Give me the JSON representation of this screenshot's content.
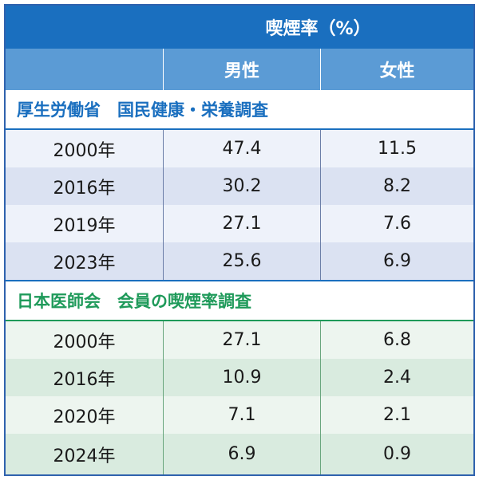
{
  "header": {
    "title": "喫煙率（%）",
    "col_male": "男性",
    "col_female": "女性"
  },
  "sections": [
    {
      "title": "厚生労働省　国民健康・栄養調査",
      "rows": [
        {
          "year": "2000年",
          "male": "47.4",
          "female": "11.5"
        },
        {
          "year": "2016年",
          "male": "30.2",
          "female": "8.2"
        },
        {
          "year": "2019年",
          "male": "27.1",
          "female": "7.6"
        },
        {
          "year": "2023年",
          "male": "25.6",
          "female": "6.9"
        }
      ]
    },
    {
      "title": "日本医師会　会員の喫煙率調査",
      "rows": [
        {
          "year": "2000年",
          "male": "27.1",
          "female": "6.8"
        },
        {
          "year": "2016年",
          "male": "10.9",
          "female": "2.4"
        },
        {
          "year": "2020年",
          "male": "7.1",
          "female": "2.1"
        },
        {
          "year": "2024年",
          "male": "6.9",
          "female": "0.9"
        }
      ]
    }
  ],
  "colors": {
    "header_dark": "#1a6fbf",
    "header_light": "#5b9bd5",
    "section1": "#1a6fbf",
    "section2": "#1f9a5a"
  }
}
